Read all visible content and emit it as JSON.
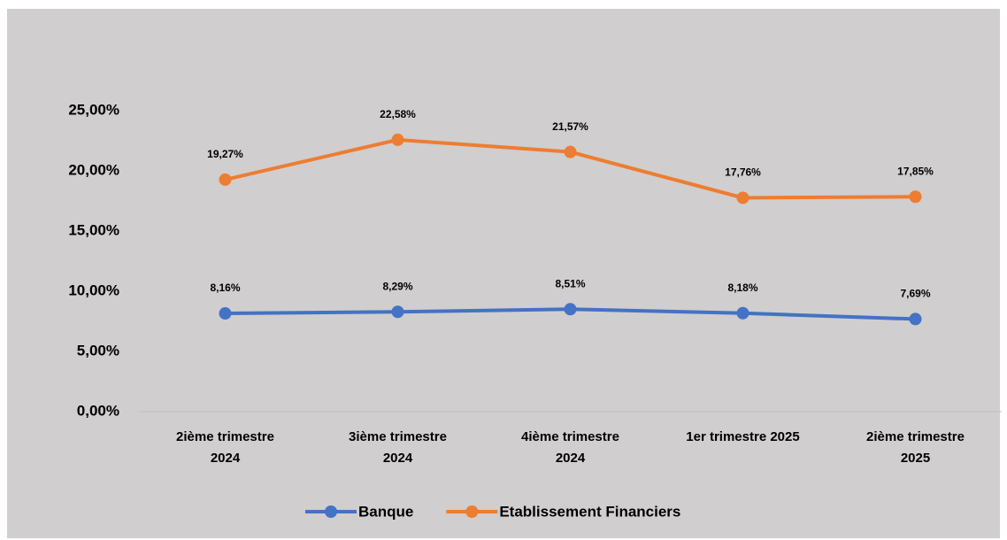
{
  "chart_data": {
    "type": "line",
    "categories": [
      "2ième trimestre\n2024",
      "3ième trimestre\n2024",
      "4ième trimestre\n2024",
      "1er trimestre 2025",
      "2ième trimestre\n2025"
    ],
    "series": [
      {
        "name": "Banque",
        "color": "#4472c4",
        "values": [
          8.16,
          8.29,
          8.51,
          8.18,
          7.69
        ],
        "value_labels": [
          "8,16%",
          "8,29%",
          "8,51%",
          "8,18%",
          "7,69%"
        ]
      },
      {
        "name": "Etablissement Financiers",
        "color": "#ed7d31",
        "values": [
          19.27,
          22.58,
          21.57,
          17.76,
          17.85
        ],
        "value_labels": [
          "19,27%",
          "22,58%",
          "21,57%",
          "17,76%",
          "17,85%"
        ]
      }
    ],
    "ylim": [
      0,
      25
    ],
    "yticks": [
      {
        "value": 0,
        "label": "0,00%"
      },
      {
        "value": 5,
        "label": "5,00%"
      },
      {
        "value": 10,
        "label": "10,00%"
      },
      {
        "value": 15,
        "label": "15,00%"
      },
      {
        "value": 20,
        "label": "20,00%"
      },
      {
        "value": 25,
        "label": "25,00%"
      }
    ],
    "legend": "bottom"
  }
}
